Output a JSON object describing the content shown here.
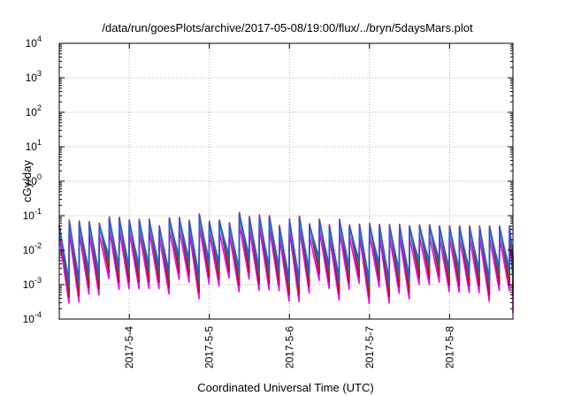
{
  "chart_data": {
    "type": "line",
    "title": "/data/run/goesPlots/archive/2017-05-08/19:00/flux/../bryn/5daysMars.plot",
    "xlabel": "Coordinated Universal Time (UTC)",
    "ylabel": "cGy/day",
    "yscale": "log",
    "ylim": [
      0.0001,
      10000
    ],
    "xlim": [
      "2017-05-03T03:00",
      "2017-05-08T19:00"
    ],
    "y_ticks": [
      {
        "base": "10",
        "exp": "-4",
        "value": 0.0001
      },
      {
        "base": "10",
        "exp": "-3",
        "value": 0.001
      },
      {
        "base": "10",
        "exp": "-2",
        "value": 0.01
      },
      {
        "base": "10",
        "exp": "-1",
        "value": 0.1
      },
      {
        "base": "10",
        "exp": "0",
        "value": 1
      },
      {
        "base": "10",
        "exp": "1",
        "value": 10
      },
      {
        "base": "10",
        "exp": "2",
        "value": 100
      },
      {
        "base": "10",
        "exp": "3",
        "value": 1000
      },
      {
        "base": "10",
        "exp": "4",
        "value": 10000
      }
    ],
    "x_ticks": [
      {
        "label": "2017-5-4",
        "value": "2017-05-04T00:00"
      },
      {
        "label": "2017-5-5",
        "value": "2017-05-05T00:00"
      },
      {
        "label": "2017-5-6",
        "value": "2017-05-06T00:00"
      },
      {
        "label": "2017-5-7",
        "value": "2017-05-07T00:00"
      },
      {
        "label": "2017-5-8",
        "value": "2017-05-08T00:00"
      }
    ],
    "grid": true,
    "legend": "none",
    "pattern": {
      "description": "sawtooth dose-rate traces, one peak roughly every 3 hours",
      "period_hours": 3,
      "peak_range": [
        0.03,
        0.13
      ],
      "trough_range": [
        0.0005,
        0.01
      ],
      "final_value": 0.00015
    },
    "series": [
      {
        "color": "#e8000b",
        "peak_scale": 1.0,
        "trough_scale": 1.0
      },
      {
        "color": "#7a0a8a",
        "peak_scale": 0.9,
        "trough_scale": 0.85
      },
      {
        "color": "#2a7a2a",
        "peak_scale": 0.8,
        "trough_scale": 1.5
      },
      {
        "color": "#3b4ee0",
        "peak_scale": 0.95,
        "trough_scale": 2.2
      },
      {
        "color": "#18b2b8",
        "peak_scale": 0.7,
        "trough_scale": 2.8
      },
      {
        "color": "#ee00ee",
        "peak_scale": 0.45,
        "trough_scale": 0.55
      }
    ]
  }
}
